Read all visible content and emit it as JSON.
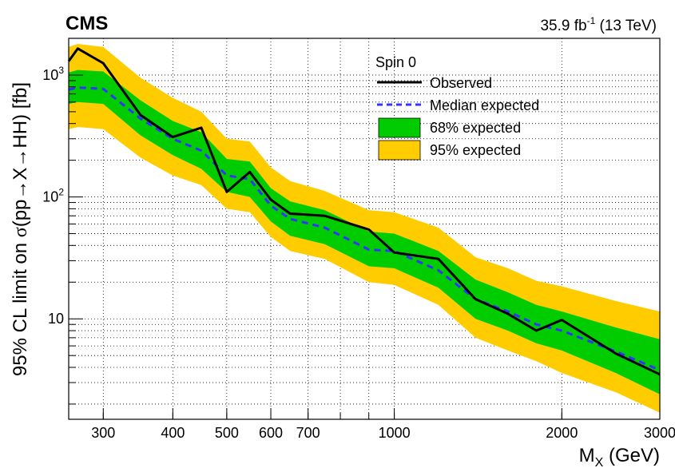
{
  "header": {
    "experiment": "CMS",
    "lumi_value": "35.9 fb",
    "lumi_exp": "-1",
    "energy": " (13 TeV)"
  },
  "axes": {
    "y_label_prefix": "95% CL limit on ",
    "y_label_sigma": "σ",
    "y_label_suffix": "(pp→X→HH) [fb]",
    "x_label_main": "M",
    "x_label_sub": "X",
    "x_label_unit": " (GeV)"
  },
  "legend": {
    "title": "Spin 0",
    "observed": "Observed",
    "median": "Median expected",
    "band68": "68% expected",
    "band95": "95% expected"
  },
  "chart_data": {
    "type": "line",
    "x_scale": "log",
    "y_scale": "log",
    "xlim": [
      260,
      3000
    ],
    "ylim": [
      1.5,
      2000
    ],
    "xlabel": "M_X (GeV)",
    "ylabel": "95% CL limit on σ(pp→X→HH) [fb]",
    "grid": true,
    "legend_position": "top-right",
    "x_ticks": [
      300,
      400,
      500,
      600,
      700,
      1000,
      2000,
      3000
    ],
    "y_ticks": [
      "10",
      "10^2",
      "10^3"
    ],
    "colors": {
      "observed": "#000000",
      "median": "#3333ff",
      "band68": "#00cc00",
      "band95": "#ffcc00"
    },
    "mass_points": [
      260,
      270,
      300,
      350,
      400,
      450,
      500,
      550,
      600,
      650,
      750,
      900,
      1000,
      1200,
      1400,
      1600,
      1800,
      2000,
      2500,
      3000
    ],
    "observed": [
      1300,
      1650,
      1250,
      470,
      310,
      370,
      110,
      160,
      95,
      73,
      70,
      54,
      35,
      31,
      14.5,
      11,
      8,
      9.8,
      5.2,
      3.5
    ],
    "expected_median": [
      760,
      790,
      770,
      440,
      300,
      240,
      150,
      140,
      85,
      66,
      56,
      37,
      36,
      25,
      14.5,
      11.5,
      9,
      8,
      5.4,
      3.8
    ],
    "expected_68_low": [
      580,
      600,
      580,
      320,
      220,
      170,
      110,
      100,
      63,
      48,
      41,
      27,
      26,
      18,
      10,
      8,
      6.3,
      5.5,
      3.6,
      2.4
    ],
    "expected_68_high": [
      1050,
      1100,
      1070,
      620,
      420,
      340,
      205,
      195,
      118,
      92,
      78,
      52,
      50,
      36,
      21,
      16.5,
      13,
      11.5,
      8.5,
      6.8
    ],
    "expected_95_low": [
      360,
      375,
      360,
      210,
      150,
      125,
      80,
      75,
      47,
      36,
      31,
      20,
      19,
      13,
      7,
      5.5,
      4.5,
      3.6,
      2.5,
      1.7
    ],
    "expected_95_high": [
      1700,
      1800,
      1700,
      950,
      650,
      500,
      300,
      285,
      175,
      135,
      112,
      78,
      75,
      56,
      32,
      26,
      20.5,
      18.5,
      14,
      11.5
    ]
  }
}
